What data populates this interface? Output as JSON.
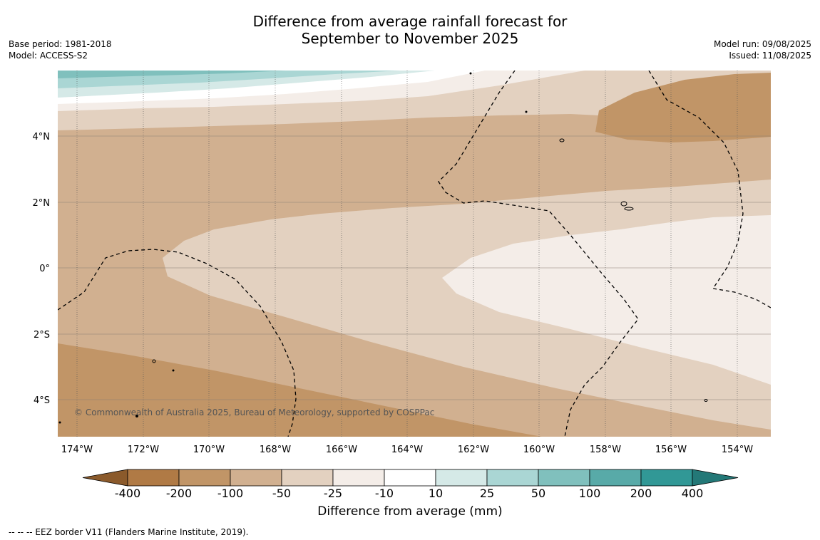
{
  "title": {
    "line1": "Difference from average rainfall forecast for",
    "line2": "September to November 2025"
  },
  "meta_left": {
    "base_period": "Base period: 1981-2018",
    "model": "Model: ACCESS-S2"
  },
  "meta_right": {
    "model_run": "Model run: 09/08/2025",
    "issued": "Issued: 11/08/2025"
  },
  "map": {
    "lat_labels": [
      "4°N",
      "2°N",
      "0°",
      "2°S",
      "4°S"
    ],
    "lon_labels": [
      "174°W",
      "172°W",
      "170°W",
      "168°W",
      "166°W",
      "164°W",
      "162°W",
      "160°W",
      "158°W",
      "156°W",
      "154°W"
    ],
    "copyright": "© Commonwealth of Australia 2025, Bureau of Meteorology, supported by COSPPac"
  },
  "colorbar": {
    "tick_labels": [
      "-400",
      "-200",
      "-100",
      "-50",
      "-25",
      "-10",
      "10",
      "25",
      "50",
      "100",
      "200",
      "400"
    ],
    "colors": [
      "#8b5a2b",
      "#b07a45",
      "#c19567",
      "#d1b090",
      "#e3d1c0",
      "#f4ede8",
      "#ffffff",
      "#d5e9e7",
      "#aad6d4",
      "#80c0bd",
      "#58aaa8",
      "#319896",
      "#237877"
    ],
    "title": "Difference from average (mm)"
  },
  "footnote": "--  --  -- EEZ border V11 (Flanders Marine Institute, 2019)."
}
